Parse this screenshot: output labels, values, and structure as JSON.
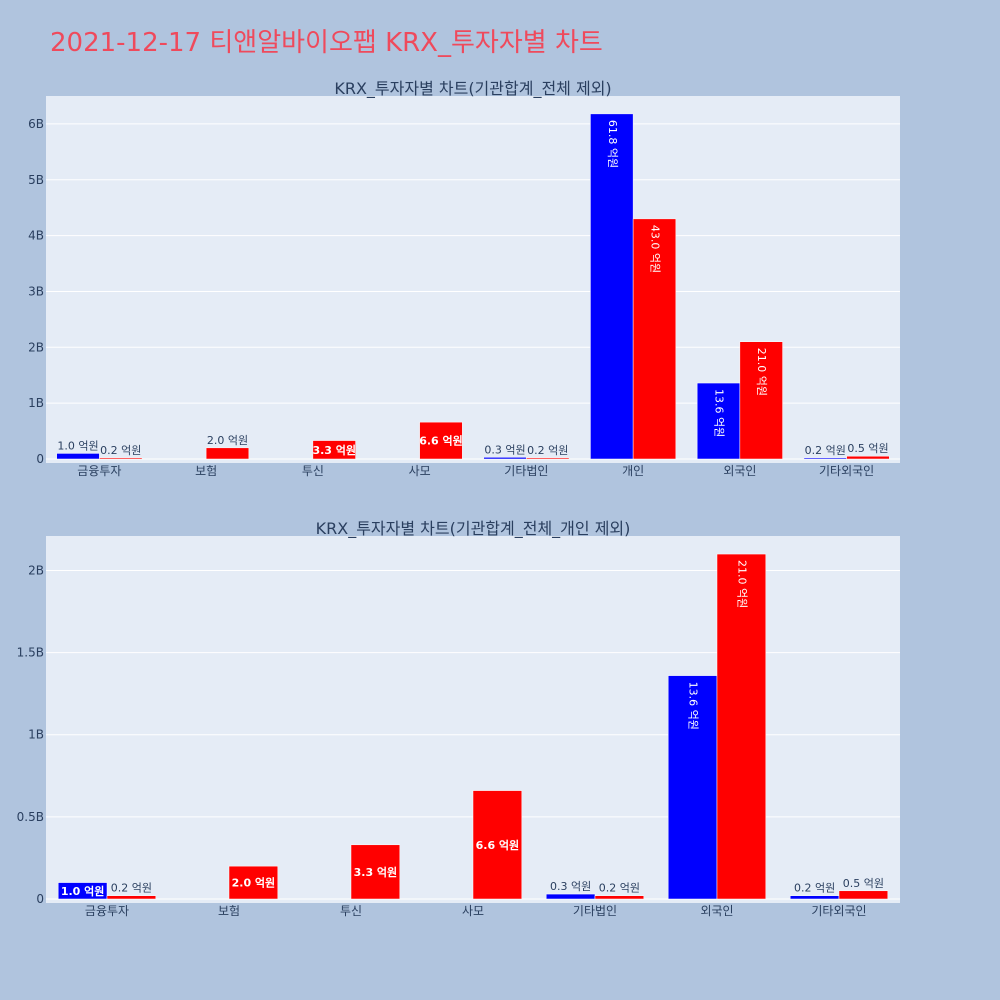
{
  "page": {
    "title": "2021-12-17 티앤알바이오팹 KRX_투자자별 차트"
  },
  "colors": {
    "background": "#b0c4de",
    "plot_bg": "#e5ecf6",
    "grid": "#ffffff",
    "title": "#ef4a5c",
    "text": "#2a3f5f",
    "buy": "#0000ff",
    "sell": "#ff0000"
  },
  "chart_data": [
    {
      "type": "bar",
      "title": "KRX_투자자별 차트(기관합계_전체 제외)",
      "categories": [
        "금융투자",
        "보험",
        "투신",
        "사모",
        "기타법인",
        "개인",
        "외국인",
        "기타외국인"
      ],
      "yticks": [
        {
          "value": 0,
          "label": "0"
        },
        {
          "value": 1000000000,
          "label": "1B"
        },
        {
          "value": 2000000000,
          "label": "2B"
        },
        {
          "value": 3000000000,
          "label": "3B"
        },
        {
          "value": 4000000000,
          "label": "4B"
        },
        {
          "value": 5000000000,
          "label": "5B"
        },
        {
          "value": 6000000000,
          "label": "6B"
        }
      ],
      "ylim": [
        0,
        6500000000
      ],
      "series": [
        {
          "color": "#0000ff",
          "values": [
            100000000,
            0,
            0,
            0,
            30000000,
            6180000000,
            1360000000,
            20000000
          ],
          "labels": [
            "1.0 억원",
            "",
            "",
            "",
            "0.3 억원",
            "61.8 억원",
            "13.6 억원",
            "0.2 억원"
          ]
        },
        {
          "color": "#ff0000",
          "values": [
            20000000,
            200000000,
            330000000,
            660000000,
            20000000,
            4300000000,
            2100000000,
            50000000
          ],
          "labels": [
            "0.2 억원",
            "2.0 억원",
            "3.3 억원",
            "6.6 억원",
            "0.2 억원",
            "43.0 억원",
            "21.0 억원",
            "0.5 억원"
          ]
        }
      ]
    },
    {
      "type": "bar",
      "title": "KRX_투자자별 차트(기관합계_전체_개인 제외)",
      "categories": [
        "금융투자",
        "보험",
        "투신",
        "사모",
        "기타법인",
        "외국인",
        "기타외국인"
      ],
      "yticks": [
        {
          "value": 0,
          "label": "0"
        },
        {
          "value": 500000000,
          "label": "0.5B"
        },
        {
          "value": 1000000000,
          "label": "1B"
        },
        {
          "value": 1500000000,
          "label": "1.5B"
        },
        {
          "value": 2000000000,
          "label": "2B"
        }
      ],
      "ylim": [
        0,
        2210000000
      ],
      "series": [
        {
          "color": "#0000ff",
          "values": [
            100000000,
            0,
            0,
            0,
            30000000,
            1360000000,
            20000000
          ],
          "labels": [
            "1.0 억원",
            "",
            "",
            "",
            "0.3 억원",
            "13.6 억원",
            "0.2 억원"
          ]
        },
        {
          "color": "#ff0000",
          "values": [
            20000000,
            200000000,
            330000000,
            660000000,
            20000000,
            2100000000,
            50000000
          ],
          "labels": [
            "0.2 억원",
            "2.0 억원",
            "3.3 억원",
            "6.6 억원",
            "0.2 억원",
            "21.0 억원",
            "0.5 억원"
          ]
        }
      ]
    }
  ]
}
